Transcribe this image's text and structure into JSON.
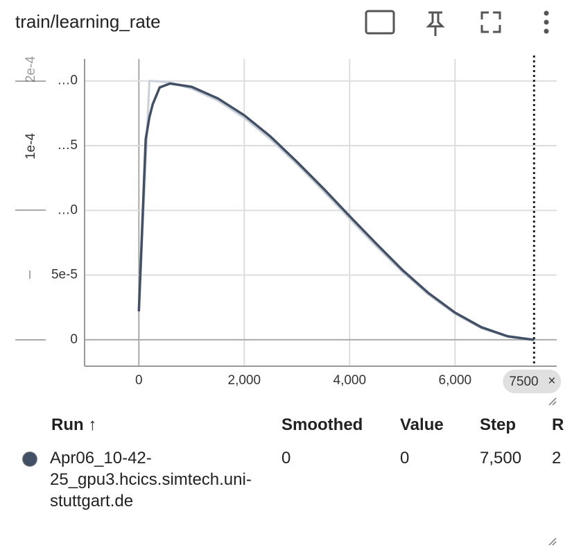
{
  "header": {
    "title": "train/learning_rate"
  },
  "chart_data": {
    "type": "line",
    "x": [
      0,
      130,
      200,
      263,
      395,
      590,
      1000,
      1500,
      2000,
      2500,
      3000,
      3500,
      4000,
      4500,
      5000,
      5500,
      6000,
      6500,
      7000,
      7500
    ],
    "series": [
      {
        "color": "#c9d0da",
        "values": [
          2.2e-05,
          0.0001377,
          0.0002,
          0.00019995,
          0.0001996,
          0.00019885,
          0.0001941,
          0.00018475,
          0.00017147,
          0.00015486,
          0.00013576,
          0.00011501,
          9.355e-05,
          7.24e-05,
          5.253e-05,
          3.48e-05,
          2.004e-05,
          8.94e-06,
          2.31e-06,
          0
        ]
      },
      {
        "color": "#425066",
        "values": [
          2.2e-05,
          0.000155,
          0.000172,
          0.000182,
          0.000195,
          0.000198,
          0.0001955,
          0.0001865,
          0.0001735,
          0.000157,
          0.0001375,
          0.000117,
          9.55e-05,
          7.45e-05,
          5.4e-05,
          3.6e-05,
          2.1e-05,
          9.7e-06,
          2.7e-06,
          0
        ]
      }
    ],
    "xlim": [
      -1030,
      7930
    ],
    "ylim": [
      -2.04e-05,
      0.000217
    ],
    "xticks": [
      0,
      {
        "value": 2000,
        "label": "2,000"
      },
      {
        "value": 4000,
        "label": "4,000"
      },
      {
        "value": 6000,
        "label": "6,000"
      }
    ],
    "yticks": [
      0,
      {
        "value": 5e-05,
        "label": "5e-5"
      },
      {
        "value": 0.0001,
        "label": "…0"
      },
      {
        "value": 0.00015,
        "label": "…5"
      },
      {
        "value": 0.0002,
        "label": "…0"
      }
    ],
    "y_label_fragments": [
      "1e-4",
      "2e-4"
    ],
    "cursor": {
      "value": 7500,
      "label": "7500"
    },
    "grid": true
  },
  "table": {
    "columns": [
      "Run",
      "Smoothed",
      "Value",
      "Step",
      "R"
    ],
    "rows": [
      [
        "Apr06_10-42-25_gpu3.hcics.simtech.uni-stuttgart.de",
        "0",
        "0",
        "7,500",
        "2"
      ]
    ]
  }
}
